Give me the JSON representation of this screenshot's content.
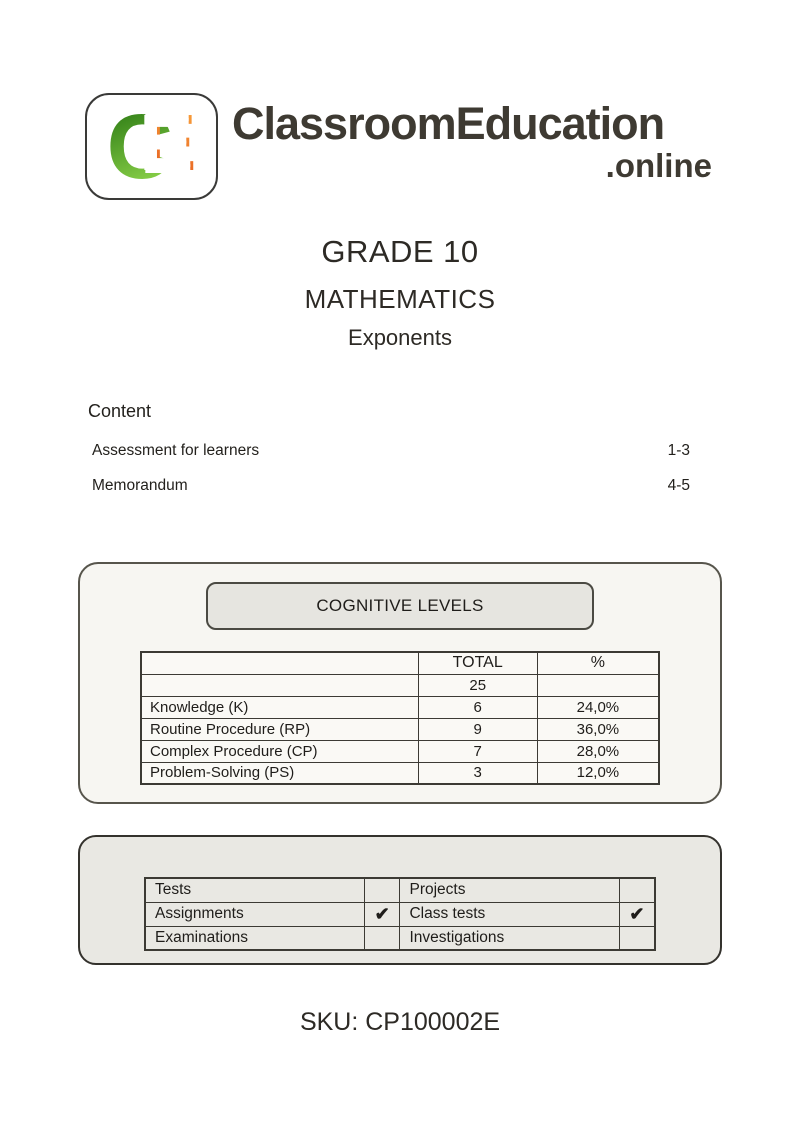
{
  "logo": {
    "monogram_c": "C",
    "monogram_e": "E",
    "brand": "ClassroomEducation",
    "domain": ".online"
  },
  "header": {
    "grade": "GRADE 10",
    "subject": "MATHEMATICS",
    "topic": "Exponents"
  },
  "content": {
    "heading": "Content",
    "items": [
      {
        "label": "Assessment for learners",
        "pages": "1-3"
      },
      {
        "label": "Memorandum",
        "pages": "4-5"
      }
    ]
  },
  "cognitive": {
    "title": "COGNITIVE LEVELS",
    "columns": {
      "total": "TOTAL",
      "percent": "%"
    },
    "grand_total": "25",
    "rows": [
      {
        "label": "Knowledge (K)",
        "total": "6",
        "percent": "24,0%"
      },
      {
        "label": "Routine Procedure (RP)",
        "total": "9",
        "percent": "36,0%"
      },
      {
        "label": "Complex Procedure (CP)",
        "total": "7",
        "percent": "28,0%"
      },
      {
        "label": "Problem-Solving (PS)",
        "total": "3",
        "percent": "12,0%"
      }
    ]
  },
  "assessment_types": {
    "check_glyph": "✔",
    "rows": [
      {
        "left": "Tests",
        "right": "Projects"
      },
      {
        "left": "Assignments",
        "right": "Class tests"
      },
      {
        "left": "Examinations",
        "right": "Investigations"
      }
    ]
  },
  "sku": "SKU: CP100002E",
  "colors": {
    "logo_green_dark": "#2f7d16",
    "logo_green_light": "#8fd64b",
    "logo_orange_dark": "#e4571d",
    "logo_orange_light": "#f9a23c",
    "text_dark": "#3e3a32",
    "box1_bg": "#f7f6f2",
    "box2_bg": "#e9e8e3"
  }
}
